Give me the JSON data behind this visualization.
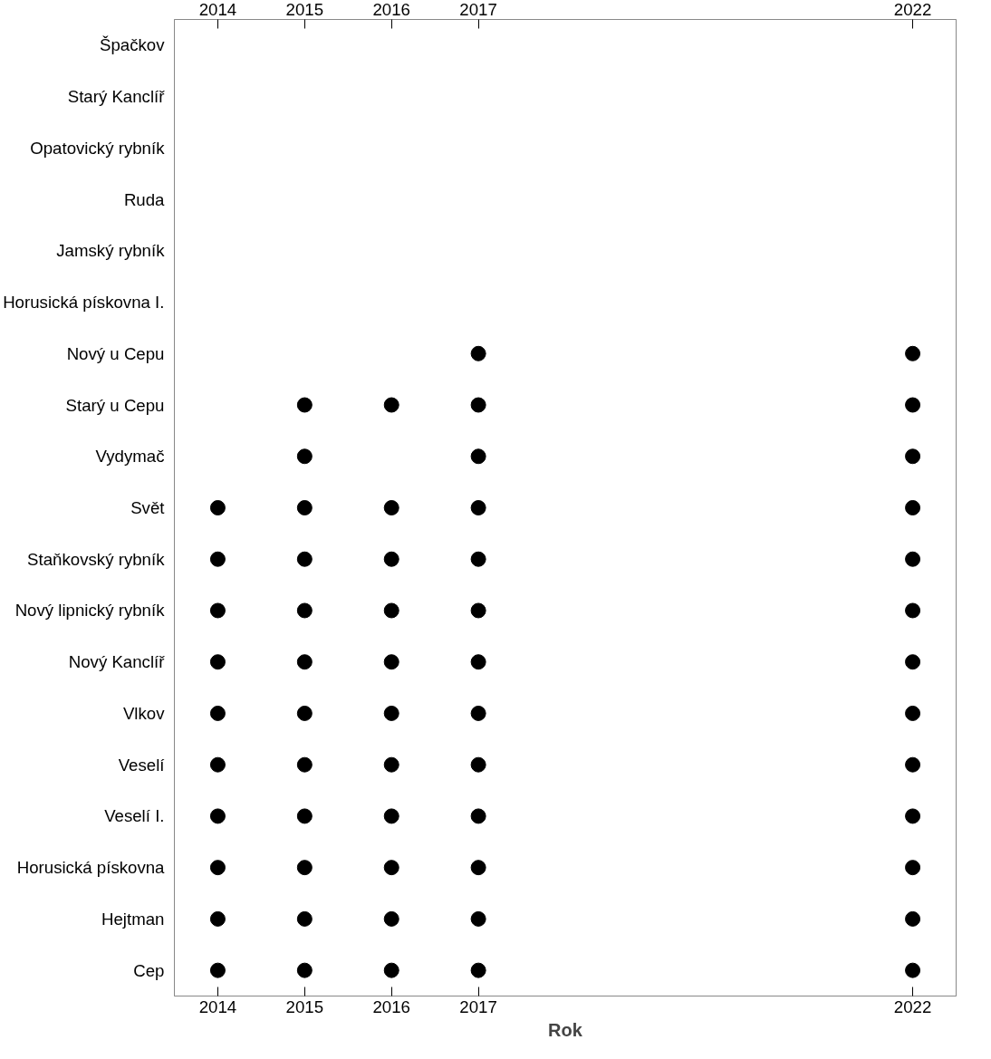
{
  "chart_data": {
    "type": "scatter",
    "orientation": "horizontal",
    "xlabel": "Rok",
    "categories": [
      "Špačkov",
      "Starý Kanclíř",
      "Opatovický rybník",
      "Ruda",
      "Jamský rybník",
      "Horusická pískovna I.",
      "Nový u Cepu",
      "Starý u Cepu",
      "Vydymač",
      "Svět",
      "Staňkovský rybník",
      "Nový lipnický rybník",
      "Nový Kanclíř",
      "Vlkov",
      "Veselí",
      "Veselí I.",
      "Horusická pískovna",
      "Hejtman",
      "Cep"
    ],
    "series": [
      {
        "color": "#000000",
        "values": [
          null,
          null,
          null,
          null,
          null,
          null,
          null,
          null,
          null,
          2014,
          2014,
          2014,
          2014,
          2014,
          2014,
          2014,
          2014,
          2014,
          2014
        ]
      },
      {
        "color": "#000000",
        "values": [
          null,
          null,
          null,
          null,
          null,
          null,
          null,
          2015,
          2015,
          2015,
          2015,
          2015,
          2015,
          2015,
          2015,
          2015,
          2015,
          2015,
          2015
        ]
      },
      {
        "color": "#000000",
        "values": [
          null,
          null,
          null,
          null,
          null,
          null,
          null,
          2016,
          null,
          2016,
          2016,
          2016,
          2016,
          2016,
          2016,
          2016,
          2016,
          2016,
          2016
        ]
      },
      {
        "color": "#000000",
        "values": [
          null,
          null,
          null,
          null,
          null,
          null,
          2017,
          2017,
          2017,
          2017,
          2017,
          2017,
          2017,
          2017,
          2017,
          2017,
          2017,
          2017,
          2017
        ]
      },
      {
        "color": "#000000",
        "values": [
          null,
          null,
          null,
          null,
          null,
          null,
          2022,
          2022,
          2022,
          2022,
          2022,
          2022,
          2022,
          2022,
          2022,
          2022,
          2022,
          2022,
          2022
        ]
      }
    ],
    "xlim": [
      2013.5,
      2022.5
    ],
    "xticks": [
      2014,
      2015,
      2016,
      2017,
      2022
    ],
    "x2lim": [
      2013.5,
      2022.5
    ],
    "x2ticks": [
      2014,
      2015,
      2016,
      2017,
      2022
    ],
    "marker": "circle",
    "grid": false
  }
}
